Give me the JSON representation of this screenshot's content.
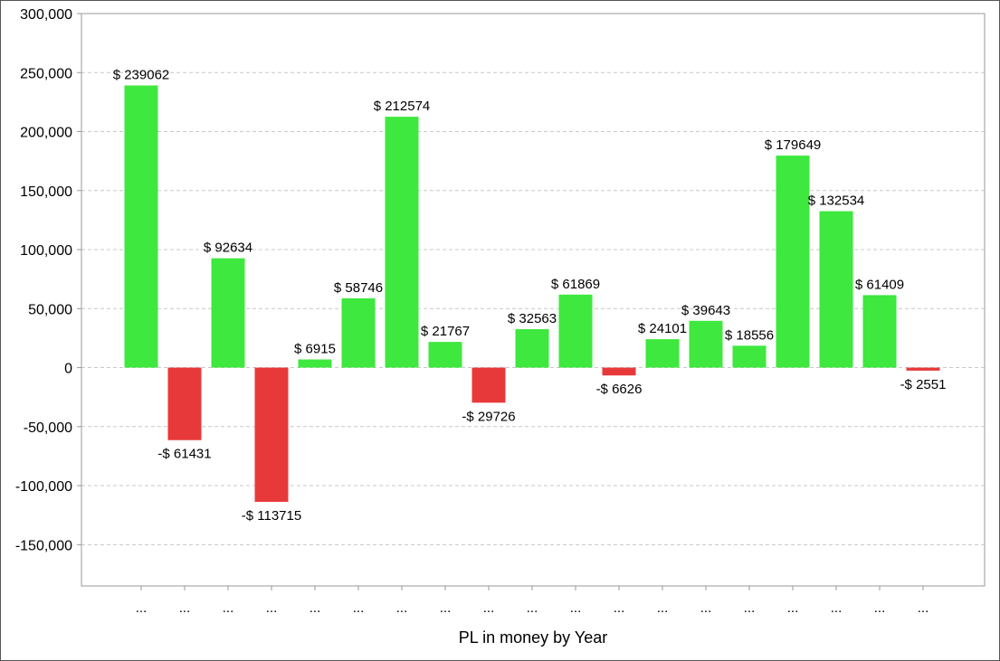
{
  "chart_data": {
    "type": "bar",
    "title": "",
    "xlabel": "PL in money by Year",
    "ylabel": "",
    "ylim": [
      -185000,
      300000
    ],
    "yticks": [
      -150000,
      -100000,
      -50000,
      0,
      50000,
      100000,
      150000,
      200000,
      250000,
      300000
    ],
    "ytick_labels": [
      "-150,000",
      "-100,000",
      "-50,000",
      "0",
      "50,000",
      "100,000",
      "150,000",
      "200,000",
      "250,000",
      "300,000"
    ],
    "grid": true,
    "legend": "none",
    "categories": [
      "...",
      "...",
      "...",
      "...",
      "...",
      "...",
      "...",
      "...",
      "...",
      "...",
      "...",
      "...",
      "...",
      "...",
      "...",
      "...",
      "...",
      "...",
      "..."
    ],
    "values": [
      239062,
      -61431,
      92634,
      -113715,
      6915,
      58746,
      212574,
      21767,
      -29726,
      32563,
      61869,
      -6626,
      24101,
      39643,
      18556,
      179649,
      132534,
      61409,
      -2551
    ],
    "data_labels": [
      "$ 239062",
      "-$ 61431",
      "$ 92634",
      "-$ 113715",
      "$ 6915",
      "$ 58746",
      "$ 212574",
      "$ 21767",
      "-$ 29726",
      "$ 32563",
      "$ 61869",
      "-$ 6626",
      "$ 24101",
      "$ 39643",
      "$ 18556",
      "$ 179649",
      "$ 132534",
      "$ 61409",
      "-$ 2551"
    ],
    "colors": {
      "positive": "#3ee83e",
      "negative": "#e8393a",
      "grid": "#c8c8c8",
      "axis": "#999999"
    }
  }
}
